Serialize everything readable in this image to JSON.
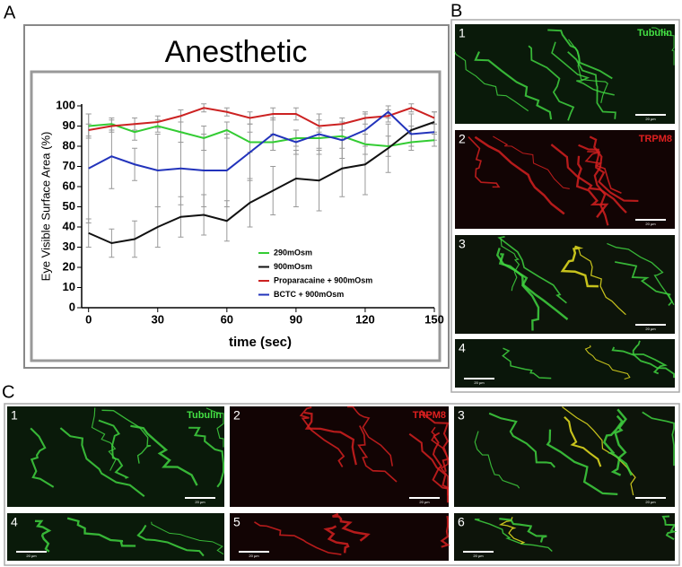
{
  "chart_data": {
    "type": "line",
    "title": "Anesthetic",
    "x_label": "time (sec)",
    "y_label": "Eye Visible Surface Area (%)",
    "x": [
      0,
      10,
      20,
      30,
      40,
      50,
      60,
      70,
      80,
      90,
      100,
      110,
      120,
      130,
      140,
      150
    ],
    "series": [
      {
        "name": "290mOsm",
        "color": "#33cc33",
        "values": [
          90,
          91,
          87,
          90,
          87,
          84,
          88,
          82,
          82,
          84,
          84,
          85,
          81,
          80,
          82,
          83
        ],
        "errors": [
          6,
          3,
          4,
          3,
          5,
          6,
          4,
          5,
          4,
          4,
          5,
          6,
          5,
          5,
          4,
          3
        ]
      },
      {
        "name": "900mOsm",
        "color": "#111111",
        "values": [
          37,
          32,
          34,
          40,
          45,
          46,
          43,
          52,
          58,
          64,
          63,
          69,
          71,
          79,
          88,
          92
        ],
        "errors": [
          7,
          7,
          9,
          10,
          10,
          10,
          10,
          12,
          12,
          14,
          15,
          14,
          15,
          12,
          8,
          5
        ]
      },
      {
        "name": "Proparacaine + 900mOsm",
        "color": "#cc2222",
        "values": [
          88,
          90,
          91,
          92,
          95,
          99,
          97,
          94,
          96,
          96,
          90,
          91,
          94,
          95,
          99,
          94
        ],
        "errors": [
          3,
          3,
          3,
          3,
          3,
          2,
          2,
          3,
          3,
          3,
          3,
          3,
          3,
          3,
          2,
          3
        ]
      },
      {
        "name": "BCTC + 900mOsm",
        "color": "#2233bb",
        "values": [
          69,
          75,
          71,
          68,
          69,
          68,
          68,
          77,
          86,
          82,
          86,
          83,
          88,
          97,
          86,
          87
        ],
        "errors": [
          27,
          16,
          8,
          18,
          18,
          18,
          18,
          14,
          8,
          6,
          10,
          9,
          8,
          3,
          4,
          4
        ]
      }
    ],
    "xlim": [
      -3,
      150
    ],
    "ylim": [
      0,
      100
    ],
    "xticks": [
      0,
      30,
      60,
      90,
      120,
      150
    ],
    "yticks": [
      0,
      10,
      20,
      30,
      40,
      50,
      60,
      70,
      80,
      90,
      100
    ],
    "legend": "lower right"
  },
  "panel_labels": [
    "A",
    "B",
    "C"
  ],
  "panel_b_images": [
    {
      "number": "1",
      "label": "Tubulin",
      "scale_bar": "20 µm"
    },
    {
      "number": "2",
      "label": "TRPM8",
      "scale_bar": "20 µm"
    },
    {
      "number": "3",
      "scale_bar": "20 µm"
    },
    {
      "number": "4",
      "scale_bar": "20 µm"
    }
  ],
  "panel_c_images": [
    {
      "number": "1",
      "label": "Tubulin",
      "scale_bar": "20 µm"
    },
    {
      "number": "2",
      "label": "TRPM8",
      "scale_bar": "20 µm"
    },
    {
      "number": "3",
      "scale_bar": "20 µm"
    },
    {
      "number": "4",
      "scale_bar": "20 µm"
    },
    {
      "number": "5",
      "scale_bar": "20 µm"
    },
    {
      "number": "6",
      "scale_bar": "20 µm"
    }
  ]
}
